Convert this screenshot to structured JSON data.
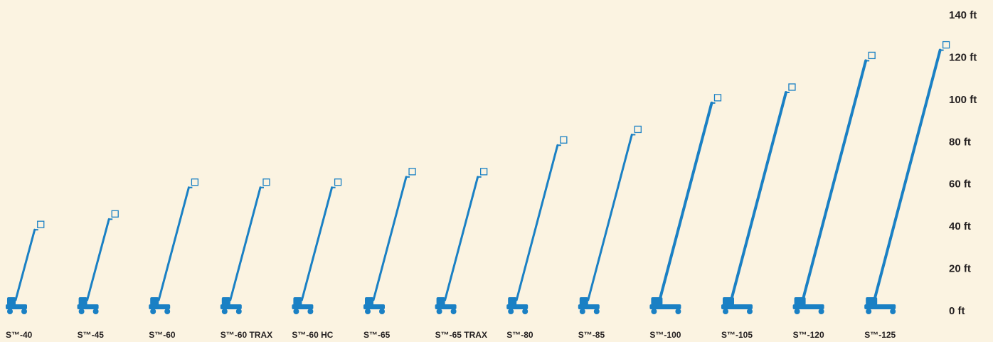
{
  "chart_data": {
    "type": "bar",
    "categories": [
      "S™-40",
      "S™-45",
      "S™-60",
      "S™-60 TRAX",
      "S™-60 HC",
      "S™-65",
      "S™-65 TRAX",
      "S™-80",
      "S™-85",
      "S™-100",
      "S™-105",
      "S™-120",
      "S™-125"
    ],
    "values": [
      40,
      45,
      60,
      60,
      60,
      65,
      65,
      80,
      85,
      100,
      105,
      120,
      125
    ],
    "color": "#1a80c4",
    "ylim": [
      0,
      140
    ],
    "yticks": [
      {
        "value": 0,
        "label": "0 ft"
      },
      {
        "value": 20,
        "label": "20 ft"
      },
      {
        "value": 40,
        "label": "40 ft"
      },
      {
        "value": 60,
        "label": "60 ft"
      },
      {
        "value": 80,
        "label": "80 ft"
      },
      {
        "value": 100,
        "label": "100 ft"
      },
      {
        "value": 120,
        "label": "120 ft"
      },
      {
        "value": 140,
        "label": "140 ft"
      }
    ]
  }
}
